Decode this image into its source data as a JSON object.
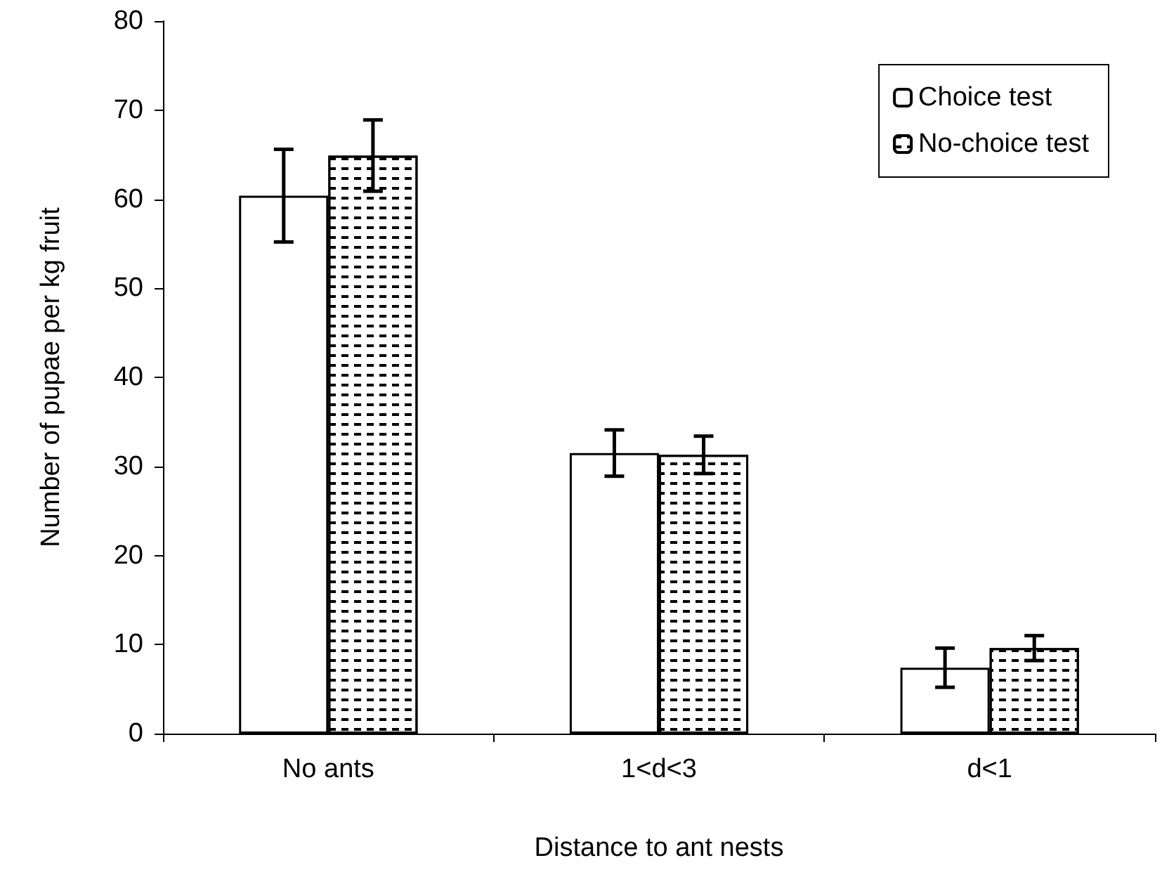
{
  "chart_data": {
    "type": "bar",
    "xlabel": "Distance to ant nests",
    "ylabel": "Number of pupae per kg fruit",
    "categories": [
      "No ants",
      "1<d<3",
      "d<1"
    ],
    "series": [
      {
        "name": "Choice test",
        "color": "#ffffff",
        "values": [
          60.4,
          31.5,
          7.4
        ],
        "errors": [
          5.2,
          2.6,
          2.2
        ]
      },
      {
        "name": "No-choice test",
        "color": "#ffffff",
        "values": [
          64.9,
          31.3,
          9.6
        ],
        "errors": [
          4.0,
          2.1,
          1.4
        ]
      }
    ],
    "ylim": [
      0,
      80
    ],
    "yticks": [
      0,
      10,
      20,
      30,
      40,
      50,
      60,
      70,
      80
    ],
    "grid": false,
    "legend": "top right"
  }
}
